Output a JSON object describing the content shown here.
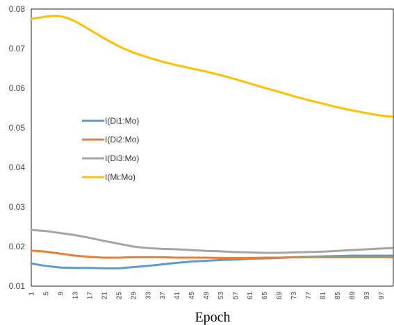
{
  "chart_data": {
    "type": "line",
    "xlabel": "Epoch",
    "ylabel": "",
    "xlim": [
      1,
      100
    ],
    "ylim": [
      0.01,
      0.08
    ],
    "yticks": [
      "0.01",
      "0.02",
      "0.03",
      "0.04",
      "0.05",
      "0.06",
      "0.07",
      "0.08"
    ],
    "xticks": [
      "1",
      "5",
      "9",
      "13",
      "17",
      "21",
      "25",
      "29",
      "33",
      "37",
      "41",
      "45",
      "49",
      "53",
      "57",
      "61",
      "65",
      "69",
      "73",
      "77",
      "81",
      "85",
      "89",
      "93",
      "97"
    ],
    "grid": false,
    "legend_position": "center-left",
    "series": [
      {
        "name": "I(Di1:Mo)",
        "color": "#5B9BD5",
        "x": [
          1,
          5,
          9,
          13,
          17,
          21,
          25,
          29,
          33,
          37,
          41,
          45,
          49,
          53,
          57,
          61,
          65,
          69,
          73,
          77,
          81,
          85,
          89,
          93,
          97,
          100
        ],
        "y": [
          0.0157,
          0.0151,
          0.0147,
          0.0146,
          0.0146,
          0.0145,
          0.0145,
          0.0148,
          0.0151,
          0.0155,
          0.0159,
          0.0162,
          0.0164,
          0.0166,
          0.0167,
          0.0169,
          0.017,
          0.0171,
          0.0173,
          0.0174,
          0.0175,
          0.0176,
          0.0177,
          0.0177,
          0.0177,
          0.0177
        ]
      },
      {
        "name": "I(Di2:Mo)",
        "color": "#ED7D31",
        "x": [
          1,
          5,
          9,
          13,
          17,
          21,
          25,
          29,
          33,
          37,
          41,
          45,
          49,
          53,
          57,
          61,
          65,
          69,
          73,
          77,
          81,
          85,
          89,
          93,
          97,
          100
        ],
        "y": [
          0.019,
          0.0187,
          0.0182,
          0.0177,
          0.0174,
          0.0172,
          0.0172,
          0.0173,
          0.0173,
          0.0173,
          0.0172,
          0.0172,
          0.0172,
          0.0171,
          0.0171,
          0.0171,
          0.0172,
          0.0172,
          0.0173,
          0.0173,
          0.0173,
          0.0173,
          0.0173,
          0.0173,
          0.0173,
          0.0173
        ]
      },
      {
        "name": "I(Di3:Mo)",
        "color": "#A5A5A5",
        "x": [
          1,
          5,
          9,
          13,
          17,
          21,
          25,
          29,
          33,
          37,
          41,
          45,
          49,
          53,
          57,
          61,
          65,
          69,
          73,
          77,
          81,
          85,
          89,
          93,
          97,
          100
        ],
        "y": [
          0.0242,
          0.0239,
          0.0234,
          0.0229,
          0.0222,
          0.0214,
          0.0207,
          0.02,
          0.0196,
          0.0194,
          0.0193,
          0.0191,
          0.0189,
          0.0188,
          0.0186,
          0.0185,
          0.0184,
          0.0184,
          0.0185,
          0.0186,
          0.0187,
          0.0189,
          0.0191,
          0.0193,
          0.0195,
          0.0196
        ]
      },
      {
        "name": "I(Mi:Mo)",
        "color": "#FFC000",
        "x": [
          1,
          3,
          5,
          7,
          9,
          11,
          13,
          15,
          17,
          19,
          21,
          23,
          25,
          29,
          33,
          37,
          41,
          45,
          49,
          53,
          57,
          61,
          65,
          69,
          73,
          77,
          81,
          85,
          89,
          93,
          97,
          100
        ],
        "y": [
          0.0775,
          0.0778,
          0.0781,
          0.0783,
          0.0782,
          0.0777,
          0.0769,
          0.0759,
          0.0748,
          0.0737,
          0.0726,
          0.0716,
          0.0706,
          0.069,
          0.0678,
          0.0667,
          0.0658,
          0.065,
          0.0642,
          0.0633,
          0.0623,
          0.0612,
          0.0601,
          0.0591,
          0.058,
          0.057,
          0.0561,
          0.0552,
          0.0544,
          0.0537,
          0.0531,
          0.0528
        ]
      }
    ]
  }
}
